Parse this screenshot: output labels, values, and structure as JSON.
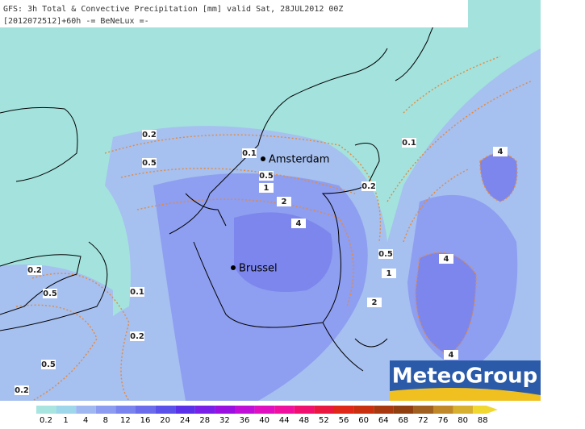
{
  "header": {
    "line1": "GFS: 3h Total & Convective Precipitation [mm] valid Sat, 28JUL2012 00Z",
    "line2": "[2012072512]+60h -= BeNeLux =-"
  },
  "cities": [
    {
      "label": "Amsterdam"
    },
    {
      "label": "Brussel"
    }
  ],
  "contour_labels": [
    "0.2",
    "0.5",
    "0.1",
    "0.5",
    "1",
    "2",
    "4",
    "0.1",
    "0.2",
    "4",
    "0.5",
    "1",
    "2",
    "4",
    "4",
    "0.2",
    "0.5",
    "0.1",
    "0.2",
    "0.5",
    "0.2"
  ],
  "legend": {
    "labels": [
      "0.2",
      "1",
      "4",
      "8",
      "12",
      "16",
      "20",
      "24",
      "28",
      "32",
      "36",
      "40",
      "44",
      "48",
      "52",
      "56",
      "60",
      "64",
      "68",
      "72",
      "76",
      "80",
      "88"
    ],
    "colors": [
      "#a8e4e0",
      "#9ed6ea",
      "#9fb8f2",
      "#8c9cf0",
      "#7a84ee",
      "#6a6cec",
      "#5a50ea",
      "#5a30e8",
      "#7820e8",
      "#9a10e0",
      "#c010d8",
      "#e010c0",
      "#f010a0",
      "#f01070",
      "#e81840",
      "#e02818",
      "#c83010",
      "#a83810",
      "#904010",
      "#a06020",
      "#c08828",
      "#d8b030",
      "#f0d830"
    ]
  },
  "logo": "MeteoGroup"
}
